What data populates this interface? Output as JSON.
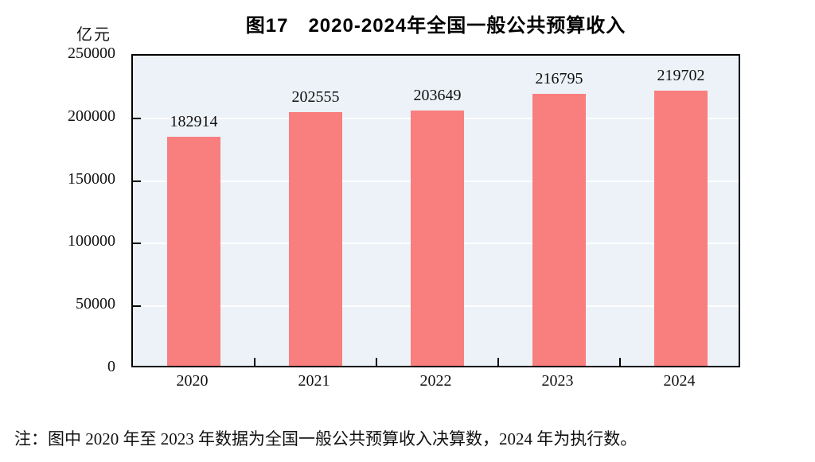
{
  "unit_label": "亿元",
  "note": "注：图中 2020 年至 2023 年数据为全国一般公共预算收入决算数，2024 年为执行数。",
  "chart_data": {
    "type": "bar",
    "title": "图17　2020-2024年全国一般公共预算收入",
    "categories": [
      "2020",
      "2021",
      "2022",
      "2023",
      "2024"
    ],
    "values": [
      182914,
      202555,
      203649,
      216795,
      219702
    ],
    "data_labels": [
      182914,
      202555,
      203649,
      216795,
      219702
    ],
    "xlabel": "",
    "ylabel": "亿元",
    "ylim": [
      0,
      250000
    ],
    "yticks": [
      0,
      50000,
      100000,
      150000,
      200000,
      250000
    ],
    "gridlines": [
      50000,
      100000,
      150000,
      200000
    ],
    "grid": "horizontal-white",
    "legend": "none",
    "bar_color": "#f97e7e",
    "plot_bg": "#ecf2f7",
    "border_color": "#000000",
    "text_color": "#111111"
  }
}
